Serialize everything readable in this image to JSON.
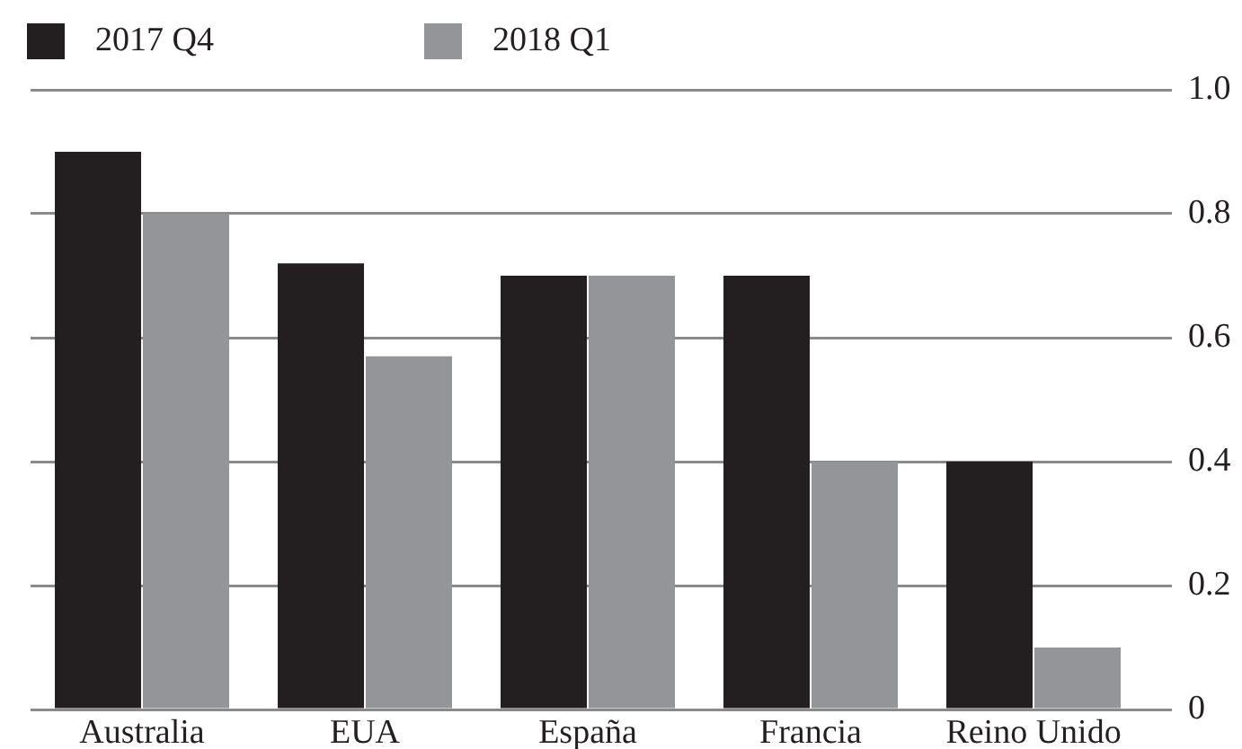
{
  "chart_data": {
    "type": "bar",
    "categories": [
      "Australia",
      "EUA",
      "España",
      "Francia",
      "Reino Unido"
    ],
    "series": [
      {
        "name": "2017 Q4",
        "color": "#231f20",
        "values": [
          0.9,
          0.72,
          0.7,
          0.7,
          0.4
        ]
      },
      {
        "name": "2018 Q1",
        "color": "#939598",
        "values": [
          0.8,
          0.57,
          0.7,
          0.4,
          0.1
        ]
      }
    ],
    "ylim": [
      0,
      1
    ],
    "yticks": [
      0,
      0.2,
      0.4,
      0.6,
      0.8,
      {
        "value": 1,
        "label": "1.0"
      }
    ],
    "grid": "y",
    "legend": "top left"
  }
}
